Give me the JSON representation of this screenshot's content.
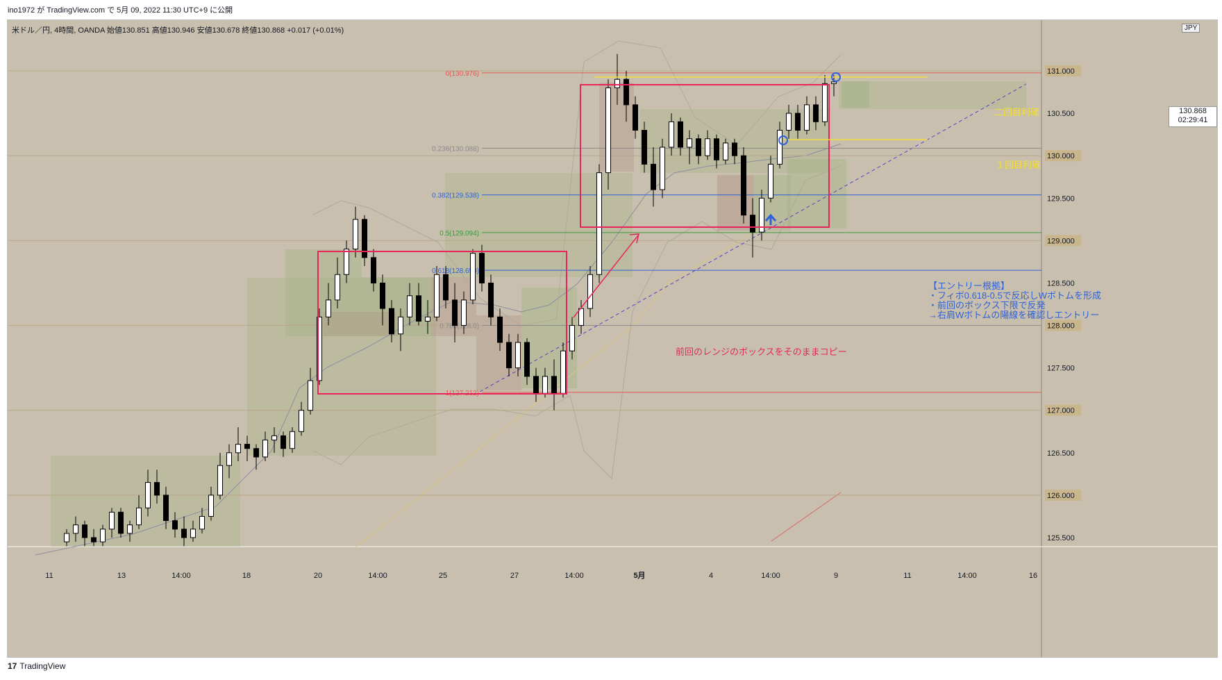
{
  "header": {
    "publish_line": "ino1972 が TradingView.com で 5月 09, 2022 11:30 UTC+9 に公開"
  },
  "legend": {
    "symbol": "米ドル／円, 4時間, OANDA",
    "open": "始値130.851",
    "high": "高値130.946",
    "low": "安値130.678",
    "close": "終値130.868",
    "change": "+0.017 (+0.01%)"
  },
  "currency_badge": "JPY",
  "last_price": {
    "price": "130.868",
    "countdown": "02:29:41"
  },
  "price_axis_labels": [
    "131.000",
    "130.500",
    "130.000",
    "129.500",
    "129.000",
    "128.500",
    "128.000",
    "127.500",
    "127.000",
    "126.500",
    "126.000",
    "125.500"
  ],
  "time_axis_labels": [
    "11",
    "13",
    "14:00",
    "18",
    "20",
    "14:00",
    "25",
    "27",
    "14:00",
    "5月",
    "4",
    "14:00",
    "9",
    "11",
    "14:00",
    "16"
  ],
  "fib_levels": [
    {
      "label": "0(130.976)",
      "price": 130.976,
      "color": "#e25a55"
    },
    {
      "label": "0.236(130.088)",
      "price": 130.088,
      "color": "#8a8a8a"
    },
    {
      "label": "0.382(129.538)",
      "price": 129.538,
      "color": "#2f62d6"
    },
    {
      "label": "0.5(129.094)",
      "price": 129.094,
      "color": "#3a9a3a"
    },
    {
      "label": "0.618(128.650)",
      "price": 128.65,
      "color": "#2f62d6"
    },
    {
      "label": "0.786(128.0)",
      "price": 128.0,
      "color": "#8a8a8a"
    },
    {
      "label": "1(127.212)",
      "price": 127.212,
      "color": "#e25a55"
    }
  ],
  "annotations": {
    "copy_box": "前回のレンジのボックスをそのままコピー",
    "take_profit_2": "二回目利確",
    "take_profit_1": "１回目利確",
    "entry_reason": [
      "【エントリー根拠】",
      "・フィボ0.618-0.5で反応しWボトムを形成",
      "・前回のボックス下限で反発",
      "→右肩Wボトムの陽線を確認しエントリー"
    ]
  },
  "footer": {
    "brand": "TradingView"
  },
  "chart_data": {
    "type": "candlestick",
    "symbol": "USDJPY",
    "interval": "4h",
    "ylim": [
      125.4,
      131.6
    ],
    "fib_anchor_high": 130.976,
    "fib_anchor_low": 127.212,
    "candles": [
      [
        125.45,
        125.6,
        125.4,
        125.55
      ],
      [
        125.55,
        125.75,
        125.45,
        125.65
      ],
      [
        125.65,
        125.7,
        125.4,
        125.5
      ],
      [
        125.5,
        125.6,
        125.4,
        125.45
      ],
      [
        125.45,
        125.65,
        125.4,
        125.6
      ],
      [
        125.6,
        125.85,
        125.5,
        125.8
      ],
      [
        125.8,
        125.85,
        125.5,
        125.55
      ],
      [
        125.55,
        125.7,
        125.45,
        125.65
      ],
      [
        125.65,
        126.0,
        125.6,
        125.85
      ],
      [
        125.85,
        126.3,
        125.75,
        126.15
      ],
      [
        126.15,
        126.3,
        125.9,
        126.0
      ],
      [
        126.0,
        126.1,
        125.6,
        125.7
      ],
      [
        125.7,
        125.8,
        125.5,
        125.6
      ],
      [
        125.6,
        125.75,
        125.4,
        125.5
      ],
      [
        125.5,
        125.7,
        125.45,
        125.6
      ],
      [
        125.6,
        125.85,
        125.55,
        125.75
      ],
      [
        125.75,
        126.1,
        125.7,
        126.0
      ],
      [
        126.0,
        126.5,
        125.95,
        126.35
      ],
      [
        126.35,
        126.6,
        126.2,
        126.5
      ],
      [
        126.5,
        126.8,
        126.4,
        126.6
      ],
      [
        126.6,
        126.7,
        126.4,
        126.55
      ],
      [
        126.55,
        126.6,
        126.3,
        126.45
      ],
      [
        126.45,
        126.75,
        126.4,
        126.65
      ],
      [
        126.65,
        126.8,
        126.5,
        126.7
      ],
      [
        126.7,
        126.75,
        126.45,
        126.55
      ],
      [
        126.55,
        126.8,
        126.5,
        126.75
      ],
      [
        126.75,
        127.1,
        126.7,
        127.0
      ],
      [
        127.0,
        127.5,
        126.95,
        127.35
      ],
      [
        127.35,
        128.2,
        127.3,
        128.1
      ],
      [
        128.1,
        128.5,
        128.0,
        128.3
      ],
      [
        128.3,
        128.8,
        128.2,
        128.6
      ],
      [
        128.6,
        129.0,
        128.5,
        128.9
      ],
      [
        128.9,
        129.4,
        128.8,
        129.25
      ],
      [
        129.25,
        129.3,
        128.7,
        128.8
      ],
      [
        128.8,
        128.9,
        128.4,
        128.5
      ],
      [
        128.5,
        128.6,
        128.0,
        128.2
      ],
      [
        128.2,
        128.3,
        127.8,
        127.9
      ],
      [
        127.9,
        128.2,
        127.7,
        128.1
      ],
      [
        128.1,
        128.5,
        128.0,
        128.35
      ],
      [
        128.35,
        128.5,
        128.0,
        128.05
      ],
      [
        128.05,
        128.3,
        127.9,
        128.1
      ],
      [
        128.1,
        128.7,
        128.05,
        128.6
      ],
      [
        128.6,
        128.7,
        128.2,
        128.3
      ],
      [
        128.3,
        128.5,
        127.8,
        128.0
      ],
      [
        128.0,
        128.4,
        127.9,
        128.3
      ],
      [
        128.3,
        128.9,
        128.25,
        128.85
      ],
      [
        128.85,
        128.95,
        128.4,
        128.5
      ],
      [
        128.5,
        128.6,
        128.0,
        128.1
      ],
      [
        128.1,
        128.2,
        127.7,
        127.8
      ],
      [
        127.8,
        127.9,
        127.4,
        127.5
      ],
      [
        127.5,
        127.9,
        127.4,
        127.8
      ],
      [
        127.8,
        127.85,
        127.3,
        127.4
      ],
      [
        127.4,
        127.5,
        127.1,
        127.2
      ],
      [
        127.2,
        127.5,
        127.15,
        127.4
      ],
      [
        127.4,
        127.6,
        127.0,
        127.2
      ],
      [
        127.2,
        127.8,
        127.15,
        127.7
      ],
      [
        127.7,
        128.1,
        127.6,
        128.0
      ],
      [
        128.0,
        128.3,
        127.9,
        128.2
      ],
      [
        128.2,
        128.7,
        128.1,
        128.6
      ],
      [
        128.6,
        129.9,
        128.5,
        129.8
      ],
      [
        129.8,
        130.9,
        129.6,
        130.8
      ],
      [
        130.8,
        131.2,
        130.6,
        130.9
      ],
      [
        130.9,
        131.0,
        130.4,
        130.6
      ],
      [
        130.6,
        130.7,
        130.2,
        130.3
      ],
      [
        130.3,
        130.4,
        129.8,
        129.9
      ],
      [
        129.9,
        130.1,
        129.4,
        129.6
      ],
      [
        129.6,
        130.2,
        129.5,
        130.1
      ],
      [
        130.1,
        130.5,
        130.0,
        130.4
      ],
      [
        130.4,
        130.45,
        130.0,
        130.1
      ],
      [
        130.1,
        130.3,
        129.9,
        130.2
      ],
      [
        130.2,
        130.25,
        129.9,
        130.0
      ],
      [
        130.0,
        130.3,
        129.95,
        130.2
      ],
      [
        130.2,
        130.25,
        129.85,
        129.95
      ],
      [
        129.95,
        130.2,
        129.9,
        130.15
      ],
      [
        130.15,
        130.2,
        129.9,
        130.0
      ],
      [
        130.0,
        130.1,
        129.2,
        129.3
      ],
      [
        129.3,
        129.5,
        128.8,
        129.1
      ],
      [
        129.1,
        129.6,
        129.0,
        129.5
      ],
      [
        129.5,
        130.0,
        129.45,
        129.9
      ],
      [
        129.9,
        130.4,
        129.85,
        130.3
      ],
      [
        130.3,
        130.6,
        130.2,
        130.5
      ],
      [
        130.5,
        130.6,
        130.2,
        130.3
      ],
      [
        130.3,
        130.7,
        130.25,
        130.6
      ],
      [
        130.6,
        130.7,
        130.3,
        130.4
      ],
      [
        130.4,
        130.95,
        130.35,
        130.85
      ],
      [
        130.85,
        130.95,
        130.7,
        130.87
      ]
    ]
  }
}
